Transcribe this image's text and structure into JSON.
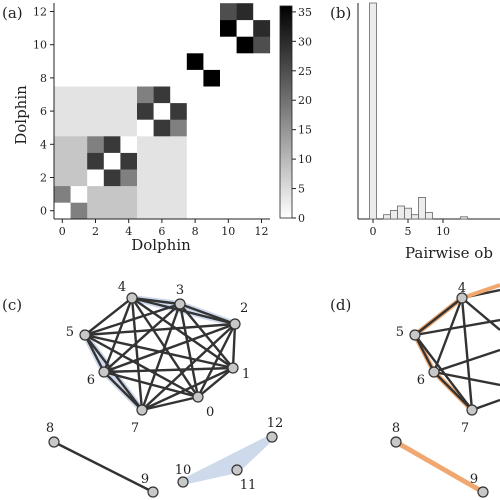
{
  "panels": {
    "a": "(a)",
    "b": "(b)",
    "c": "(c)",
    "d": "(d)"
  },
  "chart_data": [
    {
      "type": "heatmap",
      "panel": "(a)",
      "xlabel": "Dolphin",
      "ylabel": "Dolphin",
      "x_ticks": [
        "0",
        "2",
        "4",
        "6",
        "8",
        "10",
        "12"
      ],
      "y_ticks": [
        "0",
        "2",
        "4",
        "6",
        "8",
        "10",
        "12"
      ],
      "colorbar_ticks": [
        "0",
        "5",
        "10",
        "15",
        "20",
        "25",
        "30",
        "35"
      ],
      "vmax": 36,
      "matrix": [
        [
          0,
          18,
          8,
          8,
          8,
          4,
          4,
          4,
          0,
          0,
          0,
          0,
          0
        ],
        [
          18,
          0,
          8,
          8,
          8,
          4,
          4,
          4,
          0,
          0,
          0,
          0,
          0
        ],
        [
          8,
          8,
          0,
          28,
          18,
          4,
          4,
          4,
          0,
          0,
          0,
          0,
          0
        ],
        [
          8,
          8,
          28,
          0,
          28,
          4,
          4,
          4,
          0,
          0,
          0,
          0,
          0
        ],
        [
          8,
          8,
          18,
          28,
          0,
          4,
          4,
          4,
          0,
          0,
          0,
          0,
          0
        ],
        [
          4,
          4,
          4,
          4,
          4,
          0,
          28,
          18,
          0,
          0,
          0,
          0,
          0
        ],
        [
          4,
          4,
          4,
          4,
          4,
          28,
          0,
          28,
          0,
          0,
          0,
          0,
          0
        ],
        [
          4,
          4,
          4,
          4,
          4,
          18,
          28,
          0,
          0,
          0,
          0,
          0,
          0
        ],
        [
          0,
          0,
          0,
          0,
          0,
          0,
          0,
          0,
          0,
          36,
          0,
          0,
          0
        ],
        [
          0,
          0,
          0,
          0,
          0,
          0,
          0,
          0,
          36,
          0,
          0,
          0,
          0
        ],
        [
          0,
          0,
          0,
          0,
          0,
          0,
          0,
          0,
          0,
          0,
          0,
          36,
          25
        ],
        [
          0,
          0,
          0,
          0,
          0,
          0,
          0,
          0,
          0,
          0,
          36,
          0,
          30
        ],
        [
          0,
          0,
          0,
          0,
          0,
          0,
          0,
          0,
          0,
          0,
          25,
          30,
          0
        ]
      ]
    },
    {
      "type": "bar",
      "panel": "(b)",
      "xlabel": "Pairwise ob",
      "x_ticks": [
        "0",
        "5",
        "10"
      ],
      "bins": [
        {
          "x": 0,
          "count": 100
        },
        {
          "x": 2,
          "count": 2
        },
        {
          "x": 3,
          "count": 4
        },
        {
          "x": 4,
          "count": 6
        },
        {
          "x": 5,
          "count": 5
        },
        {
          "x": 6,
          "count": 2
        },
        {
          "x": 7,
          "count": 10
        },
        {
          "x": 8,
          "count": 3
        },
        {
          "x": 13,
          "count": 1
        }
      ],
      "ymax": 100
    },
    {
      "type": "network",
      "panel": "(c)",
      "nodes": [
        "0",
        "1",
        "2",
        "3",
        "4",
        "5",
        "6",
        "7",
        "8",
        "9",
        "10",
        "11",
        "12"
      ],
      "dark_edges": [
        [
          "0",
          "1"
        ],
        [
          "0",
          "2"
        ],
        [
          "0",
          "3"
        ],
        [
          "0",
          "4"
        ],
        [
          "0",
          "5"
        ],
        [
          "0",
          "6"
        ],
        [
          "0",
          "7"
        ],
        [
          "1",
          "2"
        ],
        [
          "1",
          "3"
        ],
        [
          "1",
          "4"
        ],
        [
          "1",
          "5"
        ],
        [
          "1",
          "6"
        ],
        [
          "1",
          "7"
        ],
        [
          "2",
          "3"
        ],
        [
          "2",
          "4"
        ],
        [
          "2",
          "5"
        ],
        [
          "2",
          "6"
        ],
        [
          "2",
          "7"
        ],
        [
          "3",
          "4"
        ],
        [
          "3",
          "5"
        ],
        [
          "3",
          "6"
        ],
        [
          "3",
          "7"
        ],
        [
          "4",
          "5"
        ],
        [
          "4",
          "6"
        ],
        [
          "4",
          "7"
        ],
        [
          "5",
          "6"
        ],
        [
          "5",
          "7"
        ],
        [
          "6",
          "7"
        ],
        [
          "8",
          "9"
        ]
      ],
      "hyperedges": [
        [
          "4",
          "3",
          "2"
        ],
        [
          "5",
          "6",
          "7"
        ],
        [
          "10",
          "11",
          "12"
        ]
      ],
      "hyperedge_color": "#c9d5ea"
    },
    {
      "type": "network",
      "panel": "(d)",
      "visible_nodes": [
        "4",
        "5",
        "6",
        "7",
        "8",
        "9"
      ],
      "dark_edges": [
        [
          "4",
          "5"
        ],
        [
          "4",
          "6"
        ],
        [
          "4",
          "7"
        ],
        [
          "5",
          "6"
        ],
        [
          "5",
          "7"
        ],
        [
          "6",
          "7"
        ]
      ],
      "orange_edges": [
        [
          "8",
          "9"
        ],
        [
          "4",
          "5"
        ],
        [
          "5",
          "6"
        ],
        [
          "6",
          "7"
        ]
      ],
      "orange_color": "#f0a870"
    }
  ]
}
